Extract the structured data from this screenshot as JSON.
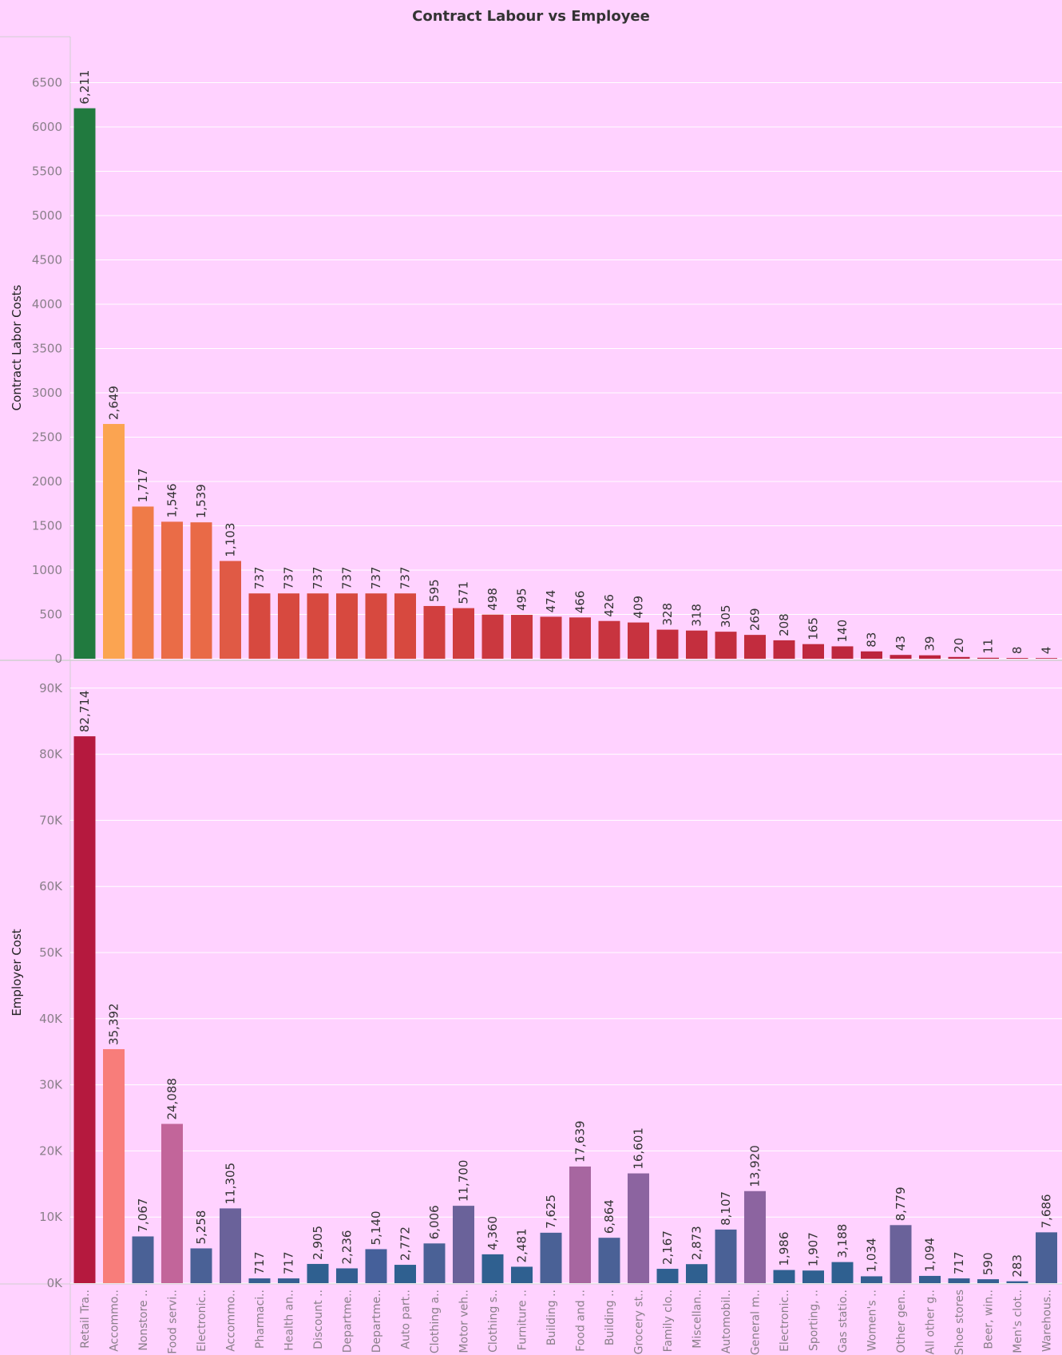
{
  "chart_data": {
    "type": "bar",
    "title": "Contract Labour vs Employee",
    "categories": [
      "Retail Tra..",
      "Accommo..",
      "Nonstore ..",
      "Food servi..",
      "Electronic..",
      "Accommo..",
      "Pharmaci..",
      "Health an..",
      "Discount ..",
      "Departme..",
      "Departme..",
      "Auto part..",
      "Clothing a..",
      "Motor veh..",
      "Clothing s..",
      "Furniture ..",
      "Building ..",
      "Food and ..",
      "Building ..",
      "Grocery st..",
      "Family clo..",
      "Miscellan..",
      "Automobil..",
      "General m..",
      "Electronic..",
      "Sporting, ..",
      "Gas statio..",
      "Women's ..",
      "Other gen..",
      "All other g..",
      "Shoe stores",
      "Beer, win..",
      "Men's clot..",
      "Warehous.."
    ],
    "panels": [
      {
        "ylabel": "Contract Labor Costs",
        "ylim": [
          0,
          6800
        ],
        "yticks": [
          0,
          500,
          1000,
          1500,
          2000,
          2500,
          3000,
          3500,
          4000,
          4500,
          5000,
          5500,
          6000,
          6500
        ],
        "ytick_labels": [
          "0",
          "500",
          "1000",
          "1500",
          "2000",
          "2500",
          "3000",
          "3500",
          "4000",
          "4500",
          "5000",
          "5500",
          "6000",
          "6500"
        ],
        "values": [
          6211,
          2649,
          1717,
          1546,
          1539,
          1103,
          737,
          737,
          737,
          737,
          737,
          737,
          595,
          571,
          498,
          495,
          474,
          466,
          426,
          409,
          328,
          318,
          305,
          269,
          208,
          165,
          140,
          83,
          43,
          39,
          20,
          11,
          8,
          4
        ],
        "value_labels": [
          "6,211",
          "2,649",
          "1,717",
          "1,546",
          "1,539",
          "1,103",
          "737",
          "737",
          "737",
          "737",
          "737",
          "737",
          "595",
          "571",
          "498",
          "495",
          "474",
          "466",
          "426",
          "409",
          "328",
          "318",
          "305",
          "269",
          "208",
          "165",
          "140",
          "83",
          "43",
          "39",
          "20",
          "11",
          "8",
          "4"
        ],
        "colors": [
          "#217a3f",
          "#fba451",
          "#ef7b48",
          "#ea6c47",
          "#e96a47",
          "#e05a45",
          "#d7493f",
          "#d7493f",
          "#d7493f",
          "#d7493f",
          "#d7493f",
          "#d7493f",
          "#d13f3f",
          "#cf3d3f",
          "#cb383f",
          "#cb383f",
          "#ca363f",
          "#ca363f",
          "#c8343f",
          "#c7333f",
          "#c42f3e",
          "#c42f3e",
          "#c32e3e",
          "#c22c3e",
          "#c02a3e",
          "#bf283e",
          "#be273e",
          "#bc253e",
          "#bb233e",
          "#bb233e",
          "#ba223e",
          "#ba223e",
          "#ba223e",
          "#ba223e"
        ]
      },
      {
        "ylabel": "Employer Cost",
        "ylim": [
          0,
          92000
        ],
        "yticks": [
          0,
          10000,
          20000,
          30000,
          40000,
          50000,
          60000,
          70000,
          80000,
          90000
        ],
        "ytick_labels": [
          "0K",
          "10K",
          "20K",
          "30K",
          "40K",
          "50K",
          "60K",
          "70K",
          "80K",
          "90K"
        ],
        "values": [
          82714,
          35392,
          7067,
          24088,
          5258,
          11305,
          717,
          717,
          2905,
          2236,
          5140,
          2772,
          6006,
          11700,
          4360,
          2481,
          7625,
          17639,
          6864,
          16601,
          2167,
          2873,
          8107,
          13920,
          1986,
          1907,
          3188,
          1034,
          8779,
          1094,
          717,
          590,
          283,
          7686
        ],
        "value_labels": [
          "82,714",
          "35,392",
          "7,067",
          "24,088",
          "5,258",
          "11,305",
          "717",
          "717",
          "2,905",
          "2,236",
          "5,140",
          "2,772",
          "6,006",
          "11,700",
          "4,360",
          "2,481",
          "7,625",
          "17,639",
          "6,864",
          "16,601",
          "2,167",
          "2,873",
          "8,107",
          "13,920",
          "1,986",
          "1,907",
          "3,188",
          "1,034",
          "8,779",
          "1,094",
          "717",
          "590",
          "283",
          "7,686"
        ],
        "colors": [
          "#b5193e",
          "#f87d7a",
          "#4a6196",
          "#c2659a",
          "#4a6196",
          "#6a629a",
          "#355f92",
          "#355f92",
          "#2f6090",
          "#335f91",
          "#45609a",
          "#2f6090",
          "#4a6196",
          "#6a629a",
          "#2f6090",
          "#2f6090",
          "#4a6196",
          "#a766a0",
          "#4a6196",
          "#8c64a0",
          "#2f6090",
          "#2f6090",
          "#4a6196",
          "#8c64a0",
          "#2f6090",
          "#2f6090",
          "#2f6090",
          "#355f92",
          "#6a629a",
          "#355f92",
          "#355f92",
          "#355f92",
          "#355f92",
          "#4a6196"
        ]
      }
    ],
    "grid": true,
    "legend": "none"
  }
}
